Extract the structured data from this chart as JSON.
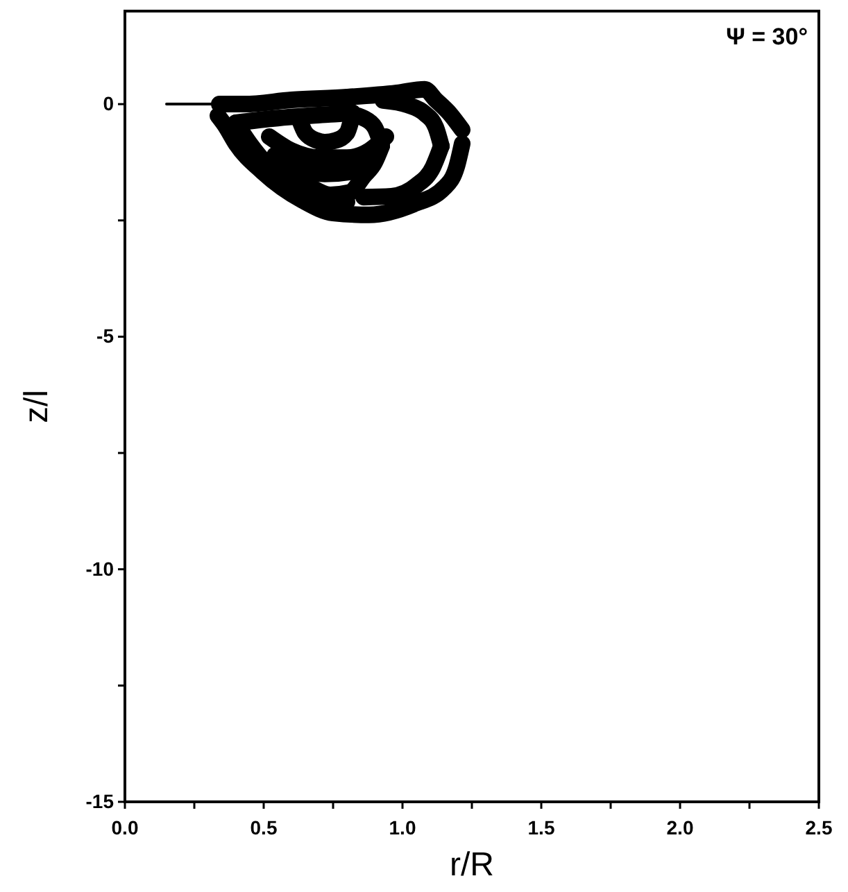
{
  "chart_data": {
    "type": "line",
    "xlabel": "r/R",
    "ylabel": "z/l",
    "xlim": [
      0,
      2.5
    ],
    "ylim": [
      -15,
      2
    ],
    "xticks": [
      {
        "value": 0,
        "label": "0.0"
      },
      {
        "value": 0.25,
        "label": null
      },
      {
        "value": 0.5,
        "label": "0.5"
      },
      {
        "value": 0.75,
        "label": null
      },
      {
        "value": 1,
        "label": "1.0"
      },
      {
        "value": 1.25,
        "label": null
      },
      {
        "value": 1.5,
        "label": "1.5"
      },
      {
        "value": 1.75,
        "label": null
      },
      {
        "value": 2,
        "label": "2.0"
      },
      {
        "value": 2.25,
        "label": null
      },
      {
        "value": 2.5,
        "label": "2.5"
      }
    ],
    "yticks": [
      -15,
      {
        "value": -12.5,
        "label": null
      },
      -10,
      {
        "value": -7.5,
        "label": null
      },
      -5,
      {
        "value": -2.5,
        "label": null
      },
      0
    ],
    "annotations": [
      "Ψ = 30°"
    ],
    "series": [
      {
        "color": "#000000",
        "x": [
          0.15,
          0.33
        ],
        "values": [
          0,
          0
        ]
      },
      {
        "color": "#000000",
        "x": [
          0.34,
          0.43,
          0.6,
          0.8,
          0.98,
          1.08,
          1.12,
          1.17,
          1.215
        ],
        "values": [
          0,
          0,
          0.09,
          0.15,
          0.24,
          0.32,
          0.09,
          -0.2,
          -0.55
        ]
      },
      {
        "color": "#000000",
        "x": [
          0.335,
          0.36,
          0.4,
          0.495,
          0.64,
          0.75,
          0.88,
          1.04,
          1.15,
          1.195,
          1.215
        ],
        "values": [
          -0.25,
          -0.45,
          -0.85,
          -1.45,
          -2.07,
          -2.34,
          -2.38,
          -2.15,
          -1.8,
          -1.35,
          -0.85
        ]
      },
      {
        "color": "#000000",
        "x": [
          0.4,
          0.55,
          0.66,
          0.74,
          0.82
        ],
        "values": [
          -0.4,
          -0.3,
          -0.25,
          -0.22,
          -0.18
        ]
      },
      {
        "color": "#000000",
        "x": [
          0.4,
          0.45,
          0.52,
          0.62,
          0.72,
          0.8
        ],
        "values": [
          -0.4,
          -0.85,
          -1.35,
          -1.8,
          -2.05,
          -2.1
        ]
      },
      {
        "color": "#000000",
        "x": [
          0.93,
          1.02,
          1.08,
          1.12,
          1.14
        ],
        "values": [
          0.08,
          -0.02,
          -0.2,
          -0.5,
          -0.9
        ]
      },
      {
        "color": "#000000",
        "x": [
          0.86,
          0.96,
          1.05,
          1.11,
          1.14
        ],
        "values": [
          -2,
          -1.98,
          -1.75,
          -1.35,
          -0.9
        ]
      },
      {
        "color": "#000000",
        "x": [
          0.8,
          0.86,
          0.9,
          0.925
        ],
        "values": [
          -0.2,
          -0.3,
          -0.5,
          -0.9
        ]
      },
      {
        "color": "#000000",
        "x": [
          0.58,
          0.66,
          0.74,
          0.81,
          0.86,
          0.9,
          0.925
        ],
        "values": [
          -1.45,
          -1.75,
          -1.95,
          -1.9,
          -1.55,
          -1.25,
          -0.9
        ]
      },
      {
        "color": "#000000",
        "x": [
          0.63,
          0.65,
          0.69,
          0.72,
          0.76,
          0.8,
          0.815
        ],
        "values": [
          -0.35,
          -0.62,
          -0.78,
          -0.82,
          -0.78,
          -0.62,
          -0.35
        ]
      },
      {
        "color": "#000000",
        "x": [
          0.52,
          0.6,
          0.7,
          0.8,
          0.88,
          0.94
        ],
        "values": [
          -0.7,
          -1,
          -1.15,
          -1.15,
          -1,
          -0.7
        ]
      },
      {
        "color": "#000000",
        "x": [
          0.54,
          0.62,
          0.72,
          0.82,
          0.89
        ],
        "values": [
          -1.1,
          -1.35,
          -1.5,
          -1.45,
          -1.2
        ]
      }
    ]
  }
}
